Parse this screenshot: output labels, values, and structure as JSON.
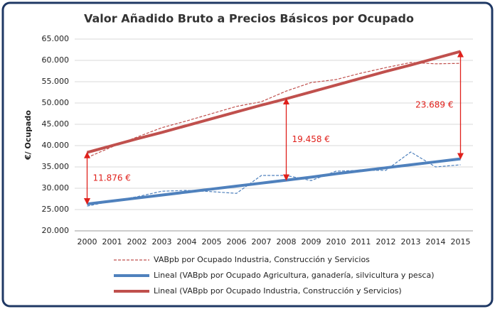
{
  "chart_data": {
    "type": "line",
    "title": "Valor Añadido Bruto a Precios Básicos por Ocupado",
    "y_label": "€/ Ocupado",
    "categories": [
      "2000",
      "2001",
      "2002",
      "2003",
      "2004",
      "2005",
      "2006",
      "2007",
      "2008",
      "2009",
      "2010",
      "2011",
      "2012",
      "2013",
      "2014",
      "2015"
    ],
    "series": [
      {
        "name": "VABpb por Ocupado Industria, Construcción y Servicios",
        "color": "#c0504d",
        "style": "dashed",
        "values": [
          37200,
          39700,
          42000,
          44200,
          45800,
          47500,
          49200,
          50300,
          52800,
          54800,
          55500,
          57000,
          58300,
          59500,
          59200,
          59300
        ]
      },
      {
        "color": "#4f81bd",
        "style": "dashed",
        "values": [
          25800,
          27000,
          28000,
          29300,
          29500,
          29200,
          28800,
          33000,
          33000,
          31800,
          34000,
          34200,
          34200,
          38500,
          35000,
          35500
        ]
      },
      {
        "name": "Lineal (VABpb por Ocupado Agricultura, ganadería, silvicultura y pesca)",
        "color": "#4f81bd",
        "style": "solid",
        "values": [
          26300,
          27000,
          27700,
          28400,
          29100,
          29800,
          30500,
          31200,
          31900,
          32600,
          33400,
          34100,
          34800,
          35500,
          36200,
          36900
        ]
      },
      {
        "name": "Lineal (VABpb por Ocupado Industria, Construcción y Servicios)",
        "color": "#c0504d",
        "style": "solid",
        "values": [
          38400,
          40000,
          41600,
          43100,
          44700,
          46300,
          47900,
          49500,
          51000,
          52600,
          54200,
          55800,
          57400,
          58900,
          60500,
          62100
        ]
      }
    ],
    "annotations": [
      {
        "text": "11.876 €",
        "x": "2000"
      },
      {
        "text": "19.458 €",
        "x": "2008"
      },
      {
        "text": "23.689 €",
        "x": "2015"
      }
    ],
    "annotation_color": "#e0201b",
    "ylim": [
      20000,
      65000
    ],
    "yticks": [
      {
        "value": 20000,
        "label": "20.000"
      },
      {
        "value": 25000,
        "label": "25.000"
      },
      {
        "value": 30000,
        "label": "30.000"
      },
      {
        "value": 35000,
        "label": "35.000"
      },
      {
        "value": 40000,
        "label": "40.000"
      },
      {
        "value": 45000,
        "label": "45.000"
      },
      {
        "value": 50000,
        "label": "50.000"
      },
      {
        "value": 55000,
        "label": "55.000"
      },
      {
        "value": 60000,
        "label": "60.000"
      },
      {
        "value": 65000,
        "label": "65.000"
      }
    ],
    "grid": true,
    "legend": "bottom"
  }
}
